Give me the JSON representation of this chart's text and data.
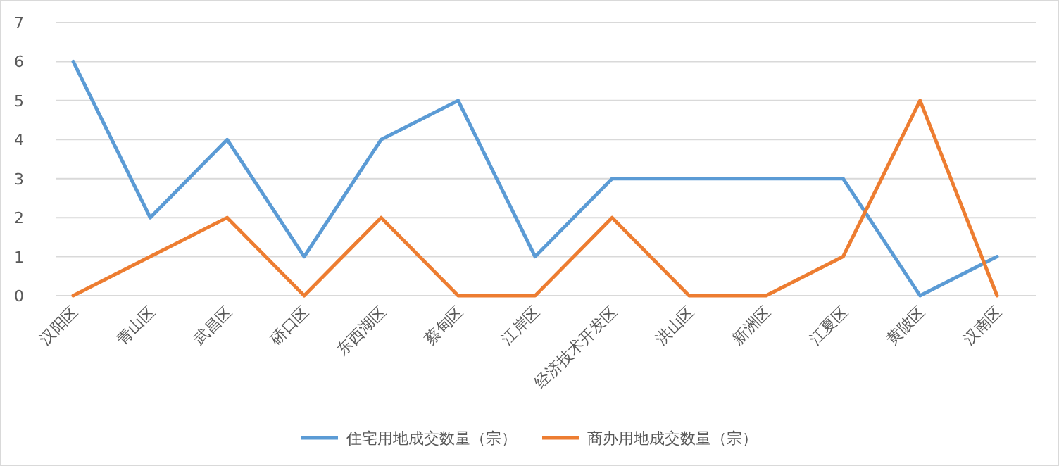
{
  "chart_data": {
    "type": "line",
    "categories": [
      "汉阳区",
      "青山区",
      "武昌区",
      "硚口区",
      "东西湖区",
      "蔡甸区",
      "江岸区",
      "经济技术开发区",
      "洪山区",
      "新洲区",
      "江夏区",
      "黄陂区",
      "汉南区"
    ],
    "series": [
      {
        "name": "住宅用地成交数量（宗）",
        "color": "#5b9bd5",
        "values": [
          6,
          2,
          4,
          1,
          4,
          5,
          1,
          3,
          3,
          3,
          3,
          0,
          1
        ]
      },
      {
        "name": "商办用地成交数量（宗）",
        "color": "#ed7d31",
        "values": [
          0,
          1,
          2,
          0,
          2,
          0,
          0,
          2,
          0,
          0,
          1,
          5,
          0
        ]
      }
    ],
    "ylim": [
      0,
      7
    ],
    "yticks": [
      0,
      1,
      2,
      3,
      4,
      5,
      6,
      7
    ],
    "grid": "y",
    "legend": "bottom",
    "marker": "none",
    "line_style": "solid"
  }
}
